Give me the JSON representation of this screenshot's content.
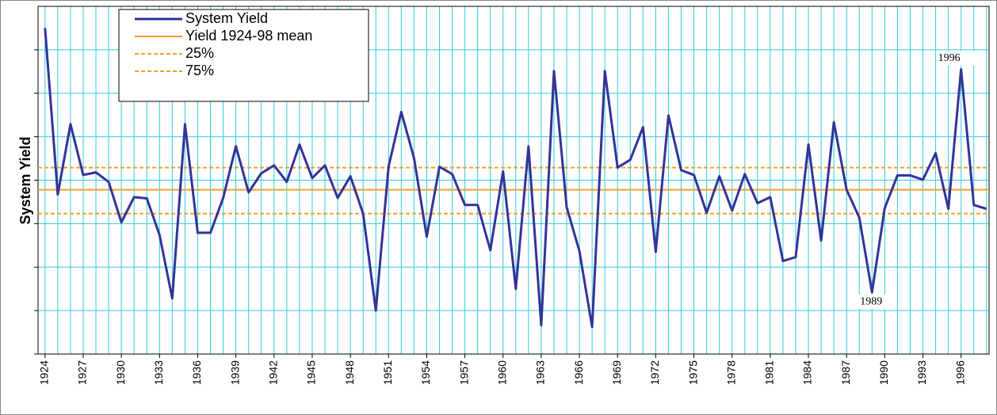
{
  "chart_data": {
    "type": "line",
    "y_label": "System Yield",
    "x": [
      1924,
      1925,
      1926,
      1927,
      1928,
      1929,
      1930,
      1931,
      1932,
      1933,
      1934,
      1935,
      1936,
      1937,
      1938,
      1939,
      1940,
      1941,
      1942,
      1943,
      1944,
      1945,
      1946,
      1947,
      1948,
      1949,
      1950,
      1951,
      1952,
      1953,
      1954,
      1955,
      1956,
      1957,
      1958,
      1959,
      1960,
      1961,
      1962,
      1963,
      1964,
      1965,
      1966,
      1967,
      1968,
      1969,
      1970,
      1971,
      1972,
      1973,
      1974,
      1975,
      1976,
      1977,
      1978,
      1979,
      1980,
      1981,
      1982,
      1983,
      1984,
      1985,
      1986,
      1987,
      1988,
      1989,
      1990,
      1991,
      1992,
      1993,
      1994,
      1995,
      1996,
      1997,
      1998
    ],
    "series": [
      {
        "name": "System Yield",
        "color": "#333399",
        "values": [
          7.5,
          3.67,
          5.29,
          4.12,
          4.18,
          3.96,
          3.03,
          3.61,
          3.58,
          2.74,
          1.28,
          5.29,
          2.79,
          2.79,
          3.59,
          4.78,
          3.72,
          4.16,
          4.34,
          3.96,
          4.82,
          4.05,
          4.34,
          3.59,
          4.09,
          3.23,
          1.0,
          4.31,
          5.57,
          4.51,
          2.7,
          4.31,
          4.14,
          3.43,
          3.43,
          2.39,
          4.2,
          1.5,
          4.78,
          0.66,
          6.51,
          3.38,
          2.37,
          0.62,
          6.51,
          4.29,
          4.47,
          5.22,
          2.35,
          5.49,
          4.23,
          4.12,
          3.25,
          4.09,
          3.3,
          4.14,
          3.47,
          3.61,
          2.14,
          2.23,
          4.82,
          2.61,
          5.33,
          3.78,
          3.14,
          1.42,
          3.36,
          4.11,
          4.11,
          4.01,
          4.62,
          3.34,
          6.55,
          3.43,
          3.34
        ]
      }
    ],
    "reference_lines": [
      {
        "name": "Yield 1924-98 mean",
        "value": 3.78,
        "color": "#f0a030",
        "style": "solid"
      },
      {
        "name": "25%",
        "value": 3.23,
        "color": "#f0a030",
        "style": "dashed"
      },
      {
        "name": "75%",
        "value": 4.29,
        "color": "#f0a030",
        "style": "dashed"
      }
    ],
    "annotations": [
      "1996",
      "1989"
    ],
    "xlim": [
      1923.45,
      1998.2
    ],
    "ylim": [
      0,
      8
    ],
    "xticks": [
      1924,
      1927,
      1930,
      1933,
      1936,
      1939,
      1942,
      1945,
      1948,
      1951,
      1954,
      1957,
      1960,
      1963,
      1966,
      1969,
      1972,
      1975,
      1978,
      1981,
      1984,
      1987,
      1990,
      1993,
      1996
    ],
    "yticks": [
      0,
      1,
      2,
      3,
      4,
      5,
      6,
      7
    ],
    "grid": true,
    "grid_color": "#33ccdd"
  }
}
